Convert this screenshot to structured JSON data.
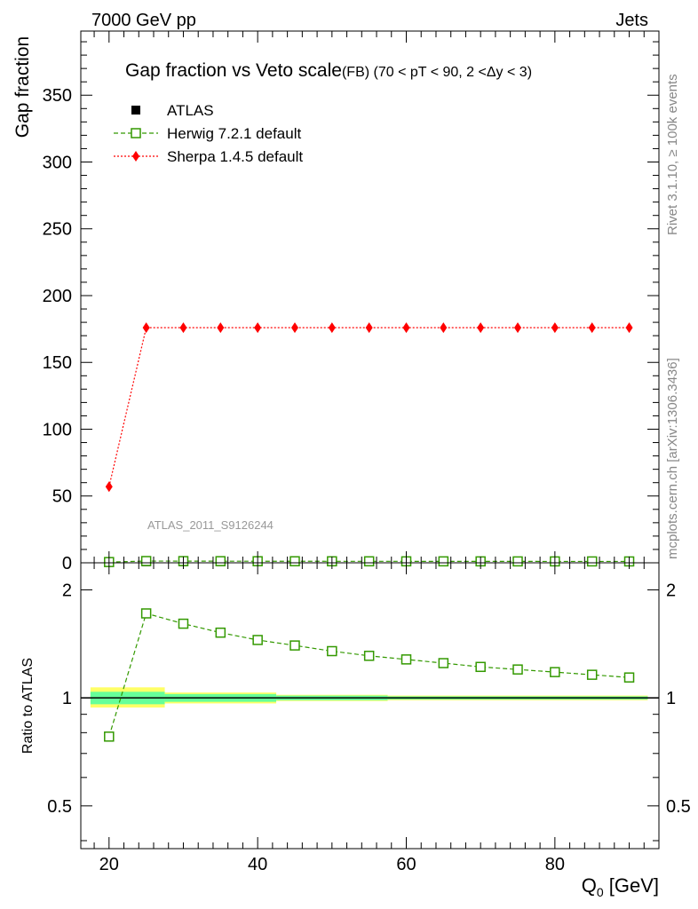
{
  "header": {
    "left": "7000 GeV pp",
    "right": "Jets"
  },
  "side": {
    "rivet": "Rivet 3.1.10, ≥ 100k events",
    "mcplots": "mcplots.cern.ch [arXiv:1306.3436]"
  },
  "watermark": "ATLAS_2011_S9126244",
  "chart_data": [
    {
      "type": "line",
      "title": "Gap fraction vs Veto scale",
      "subtitle": "(FB) (70 < pT <  90, 2 <Δy < 3)",
      "ylabel": "Gap fraction",
      "xlim": [
        16.2,
        94.0
      ],
      "ylim": [
        0,
        398
      ],
      "yticks": [
        0,
        50,
        100,
        150,
        200,
        250,
        300,
        350
      ],
      "grid": false,
      "legend_position": "top-left",
      "x": [
        20,
        25,
        30,
        35,
        40,
        45,
        50,
        55,
        60,
        65,
        70,
        75,
        80,
        85,
        90
      ],
      "series": [
        {
          "name": "ATLAS",
          "color": "#000000",
          "marker": "filled-square",
          "values": [
            0.72,
            0.76,
            0.78,
            0.8,
            0.82,
            0.83,
            0.84,
            0.85,
            0.86,
            0.87,
            0.87,
            0.88,
            0.88,
            0.89,
            0.89
          ]
        },
        {
          "name": "Herwig 7.2.1 default",
          "color": "#339900",
          "marker": "open-square",
          "linestyle": "dashed",
          "values": [
            0.56,
            1.31,
            1.26,
            1.22,
            1.18,
            1.16,
            1.13,
            1.12,
            1.1,
            1.09,
            1.08,
            1.06,
            1.05,
            1.04,
            1.03
          ]
        },
        {
          "name": "Sherpa 1.4.5 default",
          "color": "#ff0000",
          "marker": "filled-diamond",
          "linestyle": "dotted",
          "values": [
            57,
            176,
            176,
            176,
            176,
            176,
            176,
            176,
            176,
            176,
            176,
            176,
            176,
            176,
            176
          ]
        }
      ]
    },
    {
      "type": "line",
      "ylabel": "Ratio to ATLAS",
      "xlabel": "Q",
      "xlabel_sub": "0",
      "xlabel_unit": " [GeV]",
      "xlim": [
        16.2,
        94.0
      ],
      "ylim": [
        0.38,
        2.38
      ],
      "xticks": [
        20,
        40,
        60,
        80
      ],
      "yticks": [
        0.5,
        1,
        2
      ],
      "yscale": "log",
      "reference": 1,
      "band_colors": {
        "inner": "#66ff99",
        "outer": "#ffff66"
      },
      "bands": [
        {
          "x": [
            17.5,
            27.5
          ],
          "inner": [
            0.96,
            1.04
          ],
          "outer": [
            0.94,
            1.07
          ]
        },
        {
          "x": [
            27.5,
            42.5
          ],
          "inner": [
            0.975,
            1.025
          ],
          "outer": [
            0.965,
            1.035
          ]
        },
        {
          "x": [
            42.5,
            57.5
          ],
          "inner": [
            0.985,
            1.015
          ],
          "outer": [
            0.98,
            1.02
          ]
        },
        {
          "x": [
            57.5,
            92.5
          ],
          "inner": [
            0.99,
            1.01
          ],
          "outer": [
            0.985,
            1.015
          ]
        }
      ],
      "series": [
        {
          "name": "Herwig 7.2.1 default",
          "color": "#339900",
          "marker": "open-square",
          "linestyle": "dashed",
          "values": [
            0.78,
            1.72,
            1.61,
            1.52,
            1.45,
            1.4,
            1.35,
            1.31,
            1.28,
            1.25,
            1.22,
            1.2,
            1.18,
            1.16,
            1.14
          ]
        }
      ]
    }
  ]
}
